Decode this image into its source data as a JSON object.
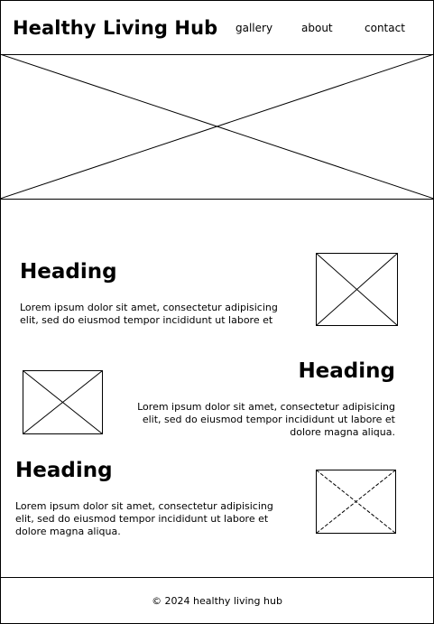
{
  "header": {
    "brand": "Healthy Living Hub",
    "nav": [
      "gallery",
      "about",
      "contact"
    ]
  },
  "sections": [
    {
      "heading": "Heading",
      "text": "Lorem ipsum dolor sit amet, consectetur adipisicing elit, sed do eiusmod tempor incididunt ut labore et"
    },
    {
      "heading": "Heading",
      "text": "Lorem ipsum dolor sit amet, consectetur adipisicing elit, sed do eiusmod tempor incididunt ut labore et dolore magna aliqua."
    },
    {
      "heading": "Heading",
      "text": "Lorem ipsum dolor sit amet, consectetur adipisicing elit, sed do eiusmod tempor incididunt ut labore et dolore magna aliqua."
    }
  ],
  "footer": {
    "text": "© 2024 healthy living hub"
  },
  "icons": {
    "hero": "image-placeholder-icon",
    "section_images": [
      "image-placeholder-icon",
      "image-placeholder-icon",
      "image-placeholder-icon"
    ]
  }
}
